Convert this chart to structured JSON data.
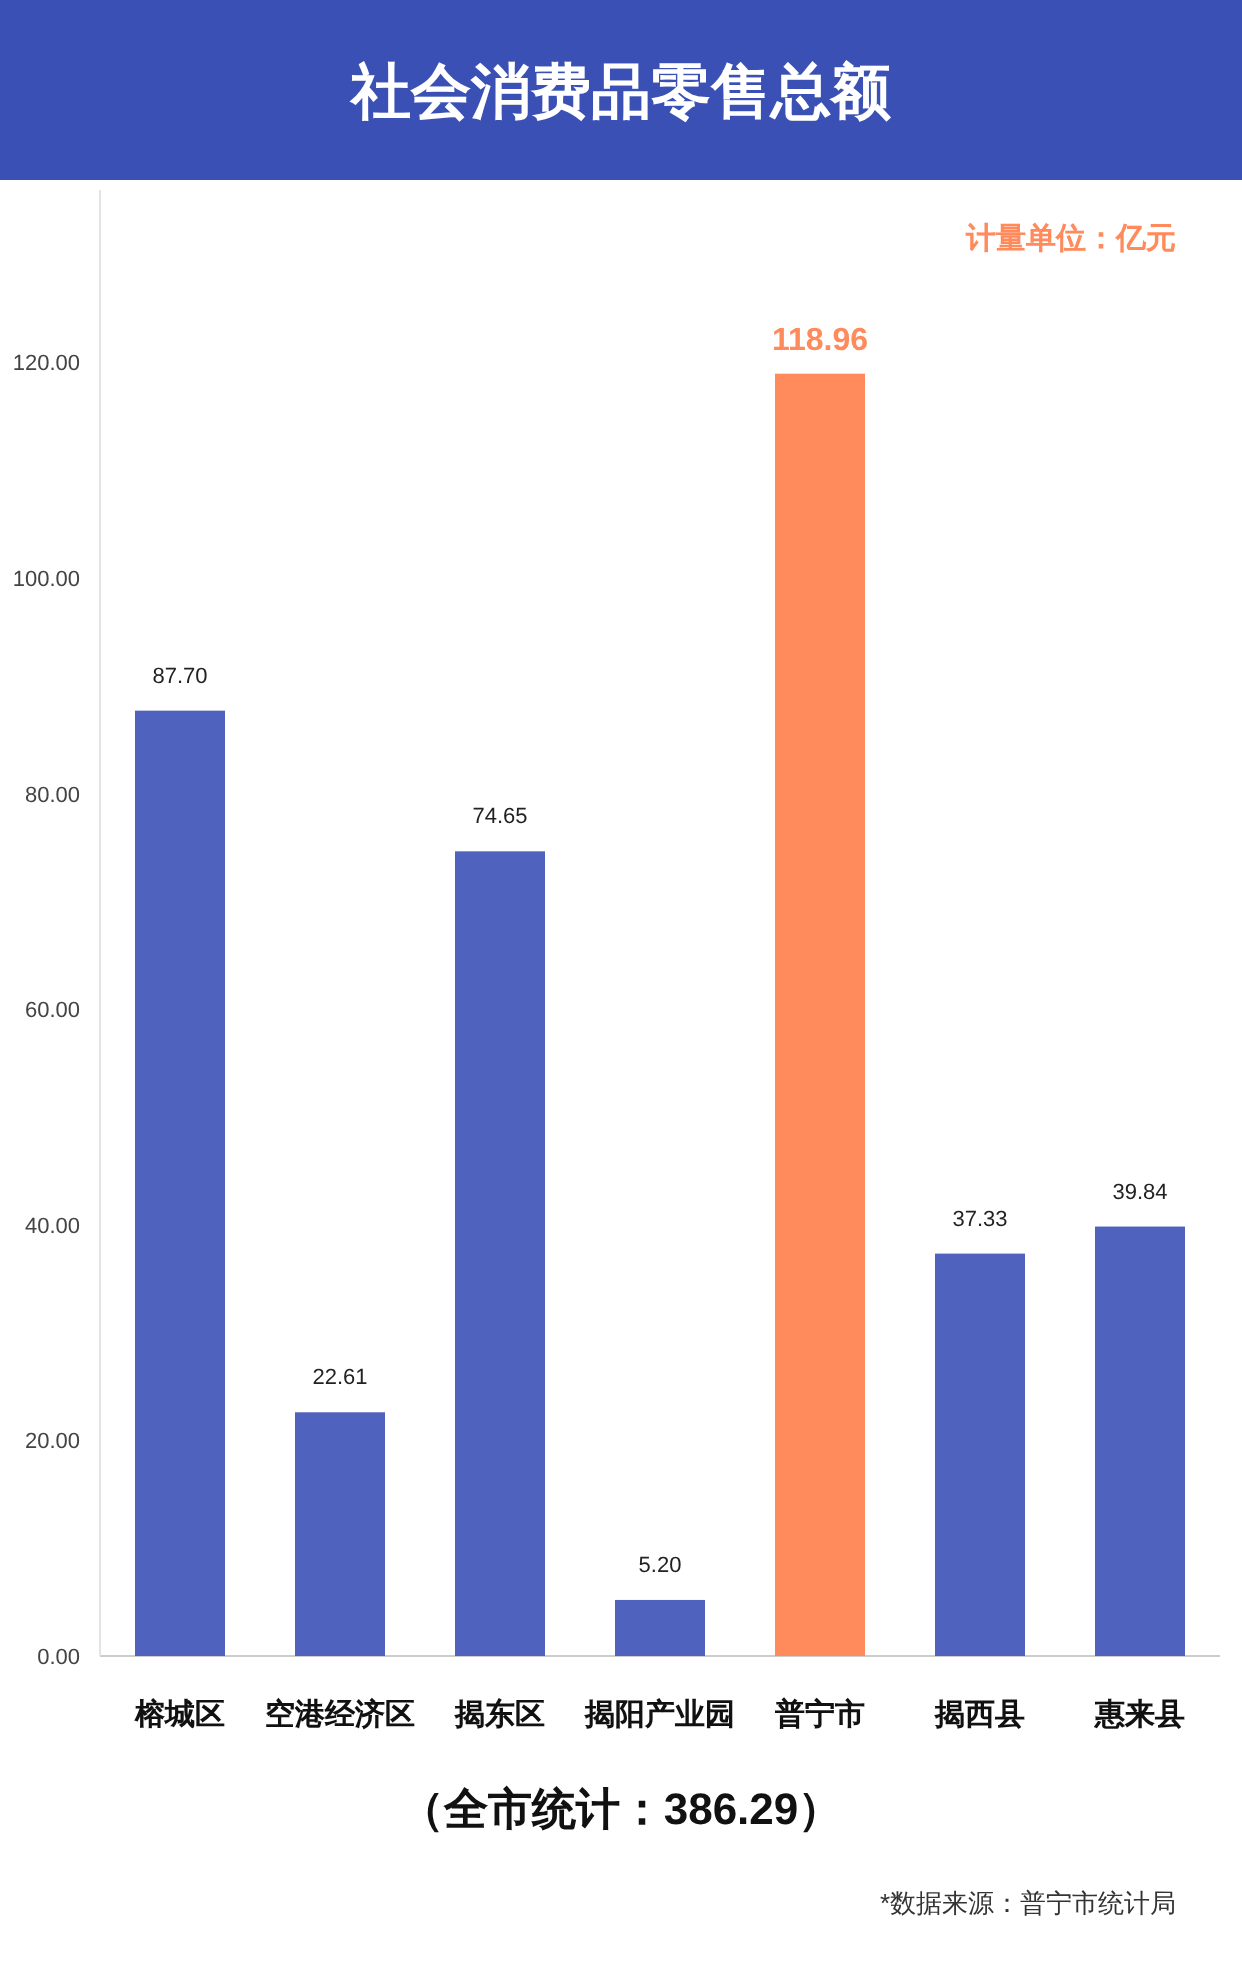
{
  "chart_data": {
    "type": "bar",
    "title": "社会消费品零售总额",
    "categories": [
      "榕城区",
      "空港经济区",
      "揭东区",
      "揭阳产业园",
      "普宁市",
      "揭西县",
      "惠来县"
    ],
    "values": [
      87.7,
      22.61,
      74.65,
      5.2,
      118.96,
      37.33,
      39.84
    ],
    "value_labels": [
      "87.70",
      "22.61",
      "74.65",
      "5.20",
      "118.96",
      "37.33",
      "39.84"
    ],
    "colors": [
      "#4f62bd",
      "#4f62bd",
      "#4f62bd",
      "#4f62bd",
      "#ff8a5b",
      "#4f62bd",
      "#4f62bd"
    ],
    "ylim": [
      0,
      136
    ],
    "yticks": [
      {
        "value": 0,
        "label": "0.00"
      },
      {
        "value": 20,
        "label": "20.00"
      },
      {
        "value": 40,
        "label": "40.00"
      },
      {
        "value": 60,
        "label": "60.00"
      },
      {
        "value": 80,
        "label": "80.00"
      },
      {
        "value": 100,
        "label": "100.00"
      },
      {
        "value": 120,
        "label": "120.00"
      }
    ],
    "annotations": [
      "计量单位：亿元",
      "（全市统计：386.29）",
      "*数据来源：普宁市统计局"
    ]
  }
}
